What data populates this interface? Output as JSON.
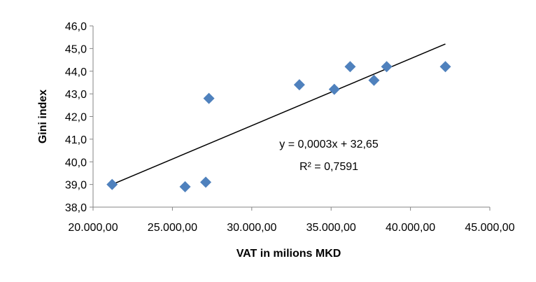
{
  "chart_data": {
    "type": "scatter",
    "title": "",
    "xlabel": "VAT in milions MKD",
    "ylabel": "Gini index",
    "xlim": [
      20000,
      45000
    ],
    "ylim": [
      38,
      46
    ],
    "x_ticks": [
      "20.000,00",
      "25.000,00",
      "30.000,00",
      "35.000,00",
      "40.000,00",
      "45.000,00"
    ],
    "y_ticks": [
      "38,0",
      "39,0",
      "40,0",
      "41,0",
      "42,0",
      "43,0",
      "44,0",
      "45,0",
      "46,0"
    ],
    "grid": false,
    "legend": "none",
    "marker": "diamond",
    "marker_color": "#4F81BD",
    "series": [
      {
        "points": [
          {
            "x": 21200,
            "y": 39.0
          },
          {
            "x": 25800,
            "y": 38.9
          },
          {
            "x": 27100,
            "y": 39.1
          },
          {
            "x": 27300,
            "y": 42.8
          },
          {
            "x": 33000,
            "y": 43.4
          },
          {
            "x": 35200,
            "y": 43.2
          },
          {
            "x": 36200,
            "y": 44.2
          },
          {
            "x": 37700,
            "y": 43.6
          },
          {
            "x": 38500,
            "y": 44.2
          },
          {
            "x": 42200,
            "y": 44.2
          }
        ]
      }
    ],
    "trendline": {
      "type": "linear",
      "x_start": 21200,
      "x_end": 42200,
      "y_start": 39.0,
      "y_end": 45.2,
      "color": "#000000",
      "equation": "y = 0,0003x + 32,65",
      "r_squared": "R² = 0,7591"
    }
  }
}
